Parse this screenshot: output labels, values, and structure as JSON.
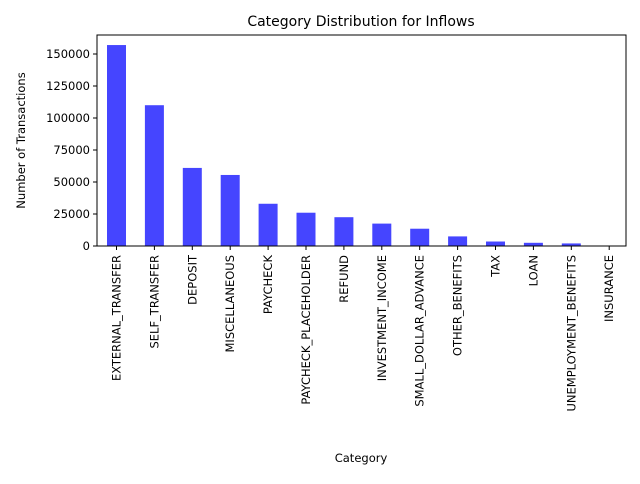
{
  "chart_data": {
    "type": "bar",
    "title": "Category Distribution for Inflows",
    "xlabel": "Category",
    "ylabel": "Number of Transactions",
    "categories": [
      "EXTERNAL_TRANSFER",
      "SELF_TRANSFER",
      "DEPOSIT",
      "MISCELLANEOUS",
      "PAYCHECK",
      "PAYCHECK_PLACEHOLDER",
      "REFUND",
      "INVESTMENT_INCOME",
      "SMALL_DOLLAR_ADVANCE",
      "OTHER_BENEFITS",
      "TAX",
      "LOAN",
      "UNEMPLOYMENT_BENEFITS",
      "INSURANCE"
    ],
    "values": [
      157000,
      110000,
      61000,
      55500,
      33000,
      26000,
      22500,
      17500,
      13500,
      7500,
      3500,
      2500,
      2000,
      300
    ],
    "ylim": [
      0,
      164850
    ],
    "yticks": [
      0,
      25000,
      50000,
      75000,
      100000,
      125000,
      150000
    ],
    "ytick_labels": [
      "0",
      "25000",
      "50000",
      "75000",
      "100000",
      "125000",
      "150000"
    ],
    "bar_color": "#4545ff",
    "grid": false,
    "legend": "none"
  }
}
